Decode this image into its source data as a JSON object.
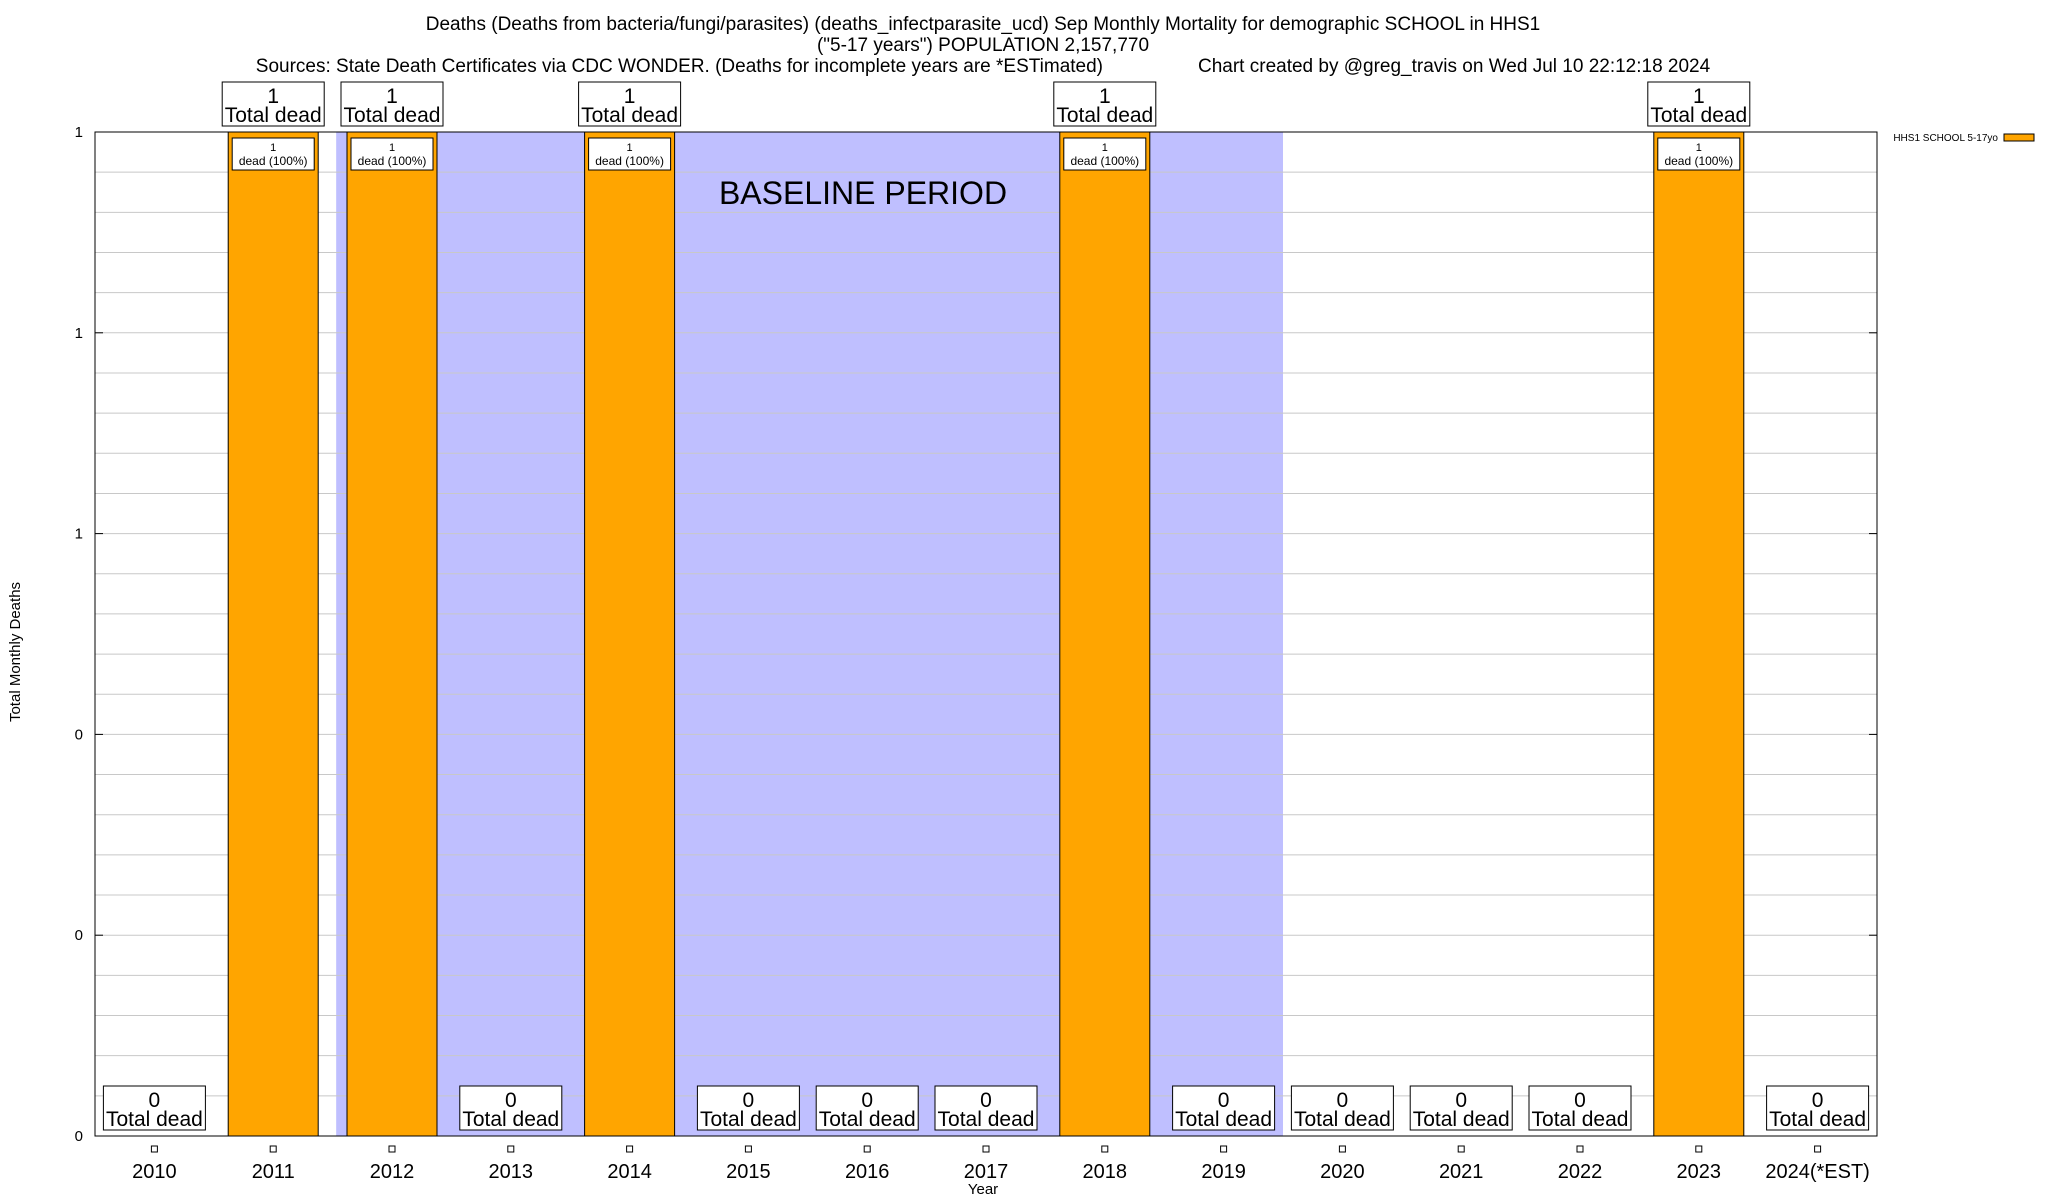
{
  "chart_data": {
    "type": "bar",
    "title": "Deaths (Deaths from bacteria/fungi/parasites) (deaths_infectparasite_ucd) Sep Monthly Mortality for demographic SCHOOL in HHS1",
    "subtitle": "(\"5-17 years\") POPULATION 2,157,770",
    "source": "Sources: State Death Certificates via CDC WONDER. (Deaths for incomplete years are *ESTimated)",
    "credit": "Chart created by @greg_travis on Wed Jul 10 22:12:18 2024",
    "xlabel": "Year",
    "ylabel": "Total Monthly Deaths",
    "categories": [
      "2010",
      "2011",
      "2012",
      "2013",
      "2014",
      "2015",
      "2016",
      "2017",
      "2018",
      "2019",
      "2020",
      "2021",
      "2022",
      "2023",
      "2024(*EST)"
    ],
    "series": [
      {
        "name": "HHS1 SCHOOL 5-17yo",
        "color": "#ffa500",
        "values": [
          0,
          1,
          1,
          0,
          1,
          0,
          0,
          0,
          1,
          0,
          0,
          0,
          0,
          1,
          0
        ]
      }
    ],
    "top_labels": [
      {
        "year": "2010",
        "count": "0",
        "text": "Total dead"
      },
      {
        "year": "2011",
        "count": "1",
        "text": "Total dead"
      },
      {
        "year": "2012",
        "count": "1",
        "text": "Total dead"
      },
      {
        "year": "2013",
        "count": "0",
        "text": "Total dead"
      },
      {
        "year": "2014",
        "count": "1",
        "text": "Total dead"
      },
      {
        "year": "2015",
        "count": "0",
        "text": "Total dead"
      },
      {
        "year": "2016",
        "count": "0",
        "text": "Total dead"
      },
      {
        "year": "2017",
        "count": "0",
        "text": "Total dead"
      },
      {
        "year": "2018",
        "count": "1",
        "text": "Total dead"
      },
      {
        "year": "2019",
        "count": "0",
        "text": "Total dead"
      },
      {
        "year": "2020",
        "count": "0",
        "text": "Total dead"
      },
      {
        "year": "2021",
        "count": "0",
        "text": "Total dead"
      },
      {
        "year": "2022",
        "count": "0",
        "text": "Total dead"
      },
      {
        "year": "2023",
        "count": "1",
        "text": "Total dead"
      },
      {
        "year": "2024(*EST)",
        "count": "0",
        "text": "Total dead"
      }
    ],
    "bar_labels": [
      "1",
      "dead (100%)"
    ],
    "yticks": [
      {
        "value": 0,
        "label": "0"
      },
      {
        "value": 0.2,
        "label": "0"
      },
      {
        "value": 0.4,
        "label": "0"
      },
      {
        "value": 0.6,
        "label": "1"
      },
      {
        "value": 0.8,
        "label": "1"
      },
      {
        "value": 1.0,
        "label": "1"
      }
    ],
    "ylim": [
      0,
      1
    ],
    "baseline_period": {
      "label": "BASELINE PERIOD",
      "from": 2011.53,
      "to": 2019.5,
      "color": "#bfbfff"
    },
    "grid": true,
    "legend_position": "top-right"
  }
}
